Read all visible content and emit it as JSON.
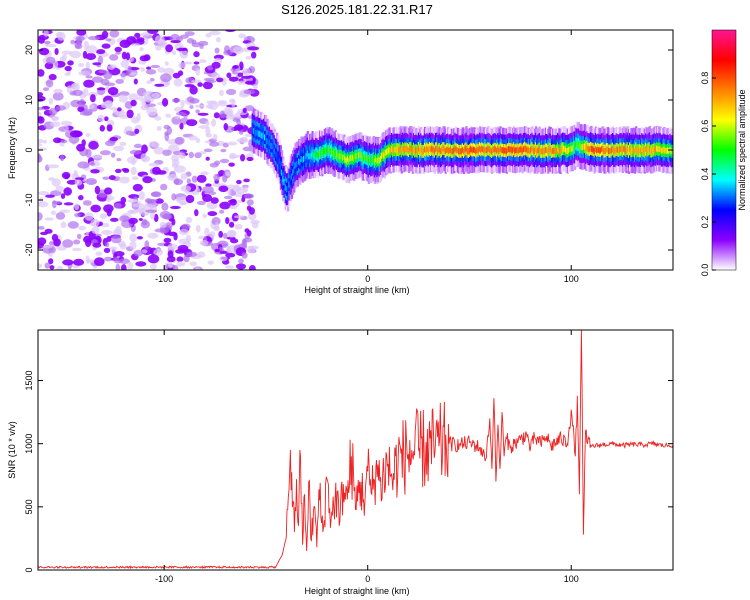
{
  "chart_data": [
    {
      "type": "heatmap",
      "title": "S126.2025.181.22.31.R17",
      "xlabel": "Height of straight line (km)",
      "ylabel": "Frequency (Hz)",
      "xlim": [
        -162,
        150
      ],
      "ylim": [
        -24,
        24
      ],
      "x_ticks": [
        -100,
        0,
        100
      ],
      "y_ticks": [
        -20,
        -10,
        0,
        10,
        20
      ],
      "colorbar": {
        "label": "Normalized spectral amplitude",
        "range": [
          0,
          1
        ],
        "ticks": [
          0.0,
          0.2,
          0.4,
          0.6,
          0.8
        ],
        "colormap": [
          "#ffffff",
          "#8b00ff",
          "#0000ff",
          "#00ffff",
          "#00ff00",
          "#ffff00",
          "#ff7f00",
          "#ff0000",
          "#ff1493"
        ]
      },
      "noise_region": {
        "x_range": [
          -162,
          -55
        ],
        "description_color": "#8b00ff"
      },
      "ridge": {
        "x": [
          -57,
          -52,
          -48,
          -44,
          -42,
          -40,
          -36,
          -30,
          -25,
          -20,
          -15,
          -10,
          -5,
          0,
          5,
          10,
          15,
          20,
          30,
          40,
          50,
          60,
          70,
          80,
          90,
          100,
          102,
          110,
          120,
          130,
          140,
          150
        ],
        "y": [
          4,
          3,
          1,
          -2,
          -6,
          -8,
          -3,
          -1,
          -1,
          0,
          -1,
          -2,
          -1,
          -2,
          -2,
          0,
          0,
          0,
          0,
          0,
          0,
          0,
          0,
          0,
          0,
          0,
          1,
          0,
          0,
          0,
          0,
          0
        ],
        "amplitude": [
          0.3,
          0.35,
          0.3,
          0.3,
          0.35,
          0.3,
          0.3,
          0.35,
          0.5,
          0.5,
          0.55,
          0.6,
          0.55,
          0.5,
          0.6,
          0.65,
          0.7,
          0.7,
          0.75,
          0.75,
          0.8,
          0.75,
          0.8,
          0.75,
          0.75,
          0.6,
          0.5,
          0.8,
          0.75,
          0.7,
          0.7,
          0.6
        ]
      }
    },
    {
      "type": "line",
      "xlabel": "Height of straight line (km)",
      "ylabel": "SNR (10 * v/v)",
      "xlim": [
        -162,
        150
      ],
      "ylim": [
        0,
        1900
      ],
      "x_ticks": [
        -100,
        0,
        100
      ],
      "y_ticks": [
        0,
        500,
        1000,
        1500
      ],
      "color": "#ee2222",
      "series": [
        {
          "x": [
            -162,
            -150,
            -140,
            -130,
            -120,
            -110,
            -100,
            -90,
            -80,
            -70,
            -60,
            -50,
            -45,
            -42,
            -40,
            -38,
            -36,
            -35,
            -34,
            -33,
            -32,
            -31,
            -30,
            -29,
            -28,
            -26,
            -25,
            -24,
            -22,
            -20,
            -18,
            -16,
            -15,
            -14,
            -12,
            -10,
            -8,
            -6,
            -4,
            -2,
            0,
            2,
            4,
            6,
            8,
            10,
            12,
            15,
            20,
            25,
            30,
            35,
            40,
            45,
            50,
            55,
            58,
            60,
            61,
            62,
            63,
            64,
            65,
            66,
            67,
            68,
            70,
            72,
            75,
            78,
            80,
            82,
            85,
            88,
            90,
            95,
            98,
            100,
            102,
            103,
            104,
            105,
            106,
            107,
            108,
            110,
            115,
            120,
            125,
            130,
            135,
            140,
            145,
            150
          ],
          "y": [
            20,
            18,
            22,
            20,
            24,
            21,
            19,
            20,
            22,
            21,
            18,
            22,
            30,
            120,
            260,
            950,
            300,
            720,
            350,
            900,
            200,
            600,
            150,
            700,
            250,
            500,
            180,
            640,
            300,
            720,
            400,
            560,
            620,
            350,
            680,
            560,
            900,
            480,
            700,
            560,
            780,
            600,
            820,
            700,
            760,
            840,
            720,
            880,
            920,
            950,
            960,
            980,
            1000,
            990,
            1010,
            970,
            880,
            1200,
            800,
            1360,
            700,
            1150,
            800,
            1250,
            900,
            1050,
            970,
            1000,
            1030,
            1080,
            960,
            1050,
            1000,
            1060,
            980,
            1040,
            1000,
            1270,
            900,
            1380,
            600,
            1900,
            280,
            1100,
            1000,
            980,
            990,
            1000,
            985,
            995,
            990,
            1000,
            985,
            990
          ]
        }
      ]
    }
  ]
}
